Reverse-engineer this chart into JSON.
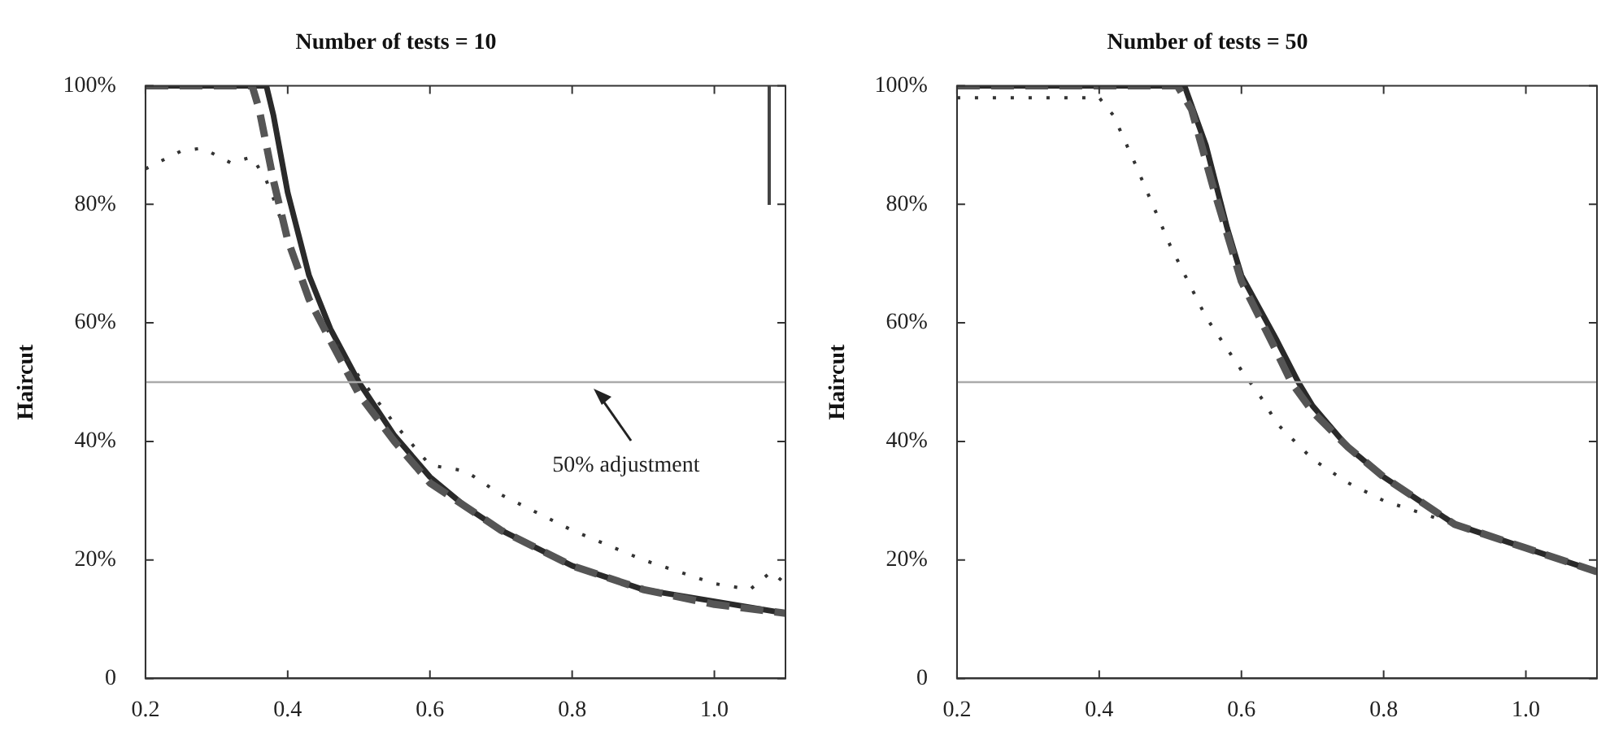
{
  "chart_data": [
    {
      "type": "line",
      "title": "Number of tests = 10",
      "ylabel": "Haircut",
      "xlim": [
        0.2,
        1.1
      ],
      "xticks": [
        0.2,
        0.4,
        0.6,
        0.8,
        {
          "value": 1,
          "label": "1.0"
        }
      ],
      "ylim": [
        0,
        100
      ],
      "yticks": [
        0,
        {
          "value": 20,
          "label": "20%"
        },
        {
          "value": 40,
          "label": "40%"
        },
        {
          "value": 60,
          "label": "60%"
        },
        {
          "value": 80,
          "label": "80%"
        },
        {
          "value": 100,
          "label": "100%"
        }
      ],
      "legend": false,
      "marker": "none",
      "series": [
        {
          "color": "#555555",
          "line_style": "dashed",
          "x": [
            0.2,
            0.3,
            0.35,
            0.36,
            0.38,
            0.4,
            0.43,
            0.46,
            0.5,
            0.55,
            0.6,
            0.65,
            0.7,
            0.8,
            0.9,
            1.0,
            1.1
          ],
          "values": [
            100,
            100,
            100,
            96,
            84,
            74,
            64,
            57,
            48,
            40,
            33,
            29,
            25,
            19,
            15,
            12.5,
            11
          ]
        },
        {
          "color": "#333333",
          "line_style": "dotted",
          "x": [
            0.2,
            0.25,
            0.28,
            0.32,
            0.35,
            0.37,
            0.38,
            0.4,
            0.43,
            0.46,
            0.5,
            0.55,
            0.6,
            0.65,
            0.7,
            0.8,
            0.9,
            1.0,
            1.05,
            1.08,
            1.1
          ],
          "values": [
            86,
            89,
            89.5,
            87,
            88,
            84,
            81,
            74,
            64,
            58,
            51,
            43,
            36,
            35,
            31,
            25,
            20,
            16,
            15,
            18,
            16
          ]
        },
        {
          "color": "#2a2a2a",
          "line_style": "solid",
          "x": [
            0.2,
            0.3,
            0.37,
            0.38,
            0.4,
            0.43,
            0.46,
            0.5,
            0.55,
            0.6,
            0.65,
            0.7,
            0.8,
            0.9,
            1.0,
            1.1
          ],
          "values": [
            100,
            100,
            100,
            95,
            82,
            68,
            59,
            50,
            41,
            34,
            29,
            25,
            19,
            15,
            13,
            11
          ]
        }
      ],
      "ref_lines": [
        {
          "axis": "y",
          "value": 50,
          "color": "#aaaaaa"
        }
      ],
      "annotations": [
        {
          "text": "50% adjustment",
          "x": 0.83,
          "y": 50
        }
      ]
    },
    {
      "type": "line",
      "title": "Number of tests = 50",
      "ylabel": "Haircut",
      "xlim": [
        0.2,
        1.1
      ],
      "xticks": [
        0.2,
        0.4,
        0.6,
        0.8,
        {
          "value": 1,
          "label": "1.0"
        }
      ],
      "ylim": [
        0,
        100
      ],
      "yticks": [
        0,
        {
          "value": 20,
          "label": "20%"
        },
        {
          "value": 40,
          "label": "40%"
        },
        {
          "value": 60,
          "label": "60%"
        },
        {
          "value": 80,
          "label": "80%"
        },
        {
          "value": 100,
          "label": "100%"
        }
      ],
      "legend": false,
      "marker": "none",
      "series": [
        {
          "color": "#555555",
          "line_style": "dashed",
          "x": [
            0.2,
            0.4,
            0.51,
            0.53,
            0.56,
            0.6,
            0.65,
            0.67,
            0.7,
            0.75,
            0.8,
            0.9,
            1.0,
            1.1
          ],
          "values": [
            100,
            100,
            100,
            96,
            83,
            67,
            55,
            50,
            45,
            39,
            34,
            26,
            22,
            18
          ]
        },
        {
          "color": "#333333",
          "line_style": "dotted",
          "x": [
            0.2,
            0.3,
            0.4,
            0.42,
            0.45,
            0.5,
            0.55,
            0.6,
            0.63,
            0.65,
            0.7,
            0.75,
            0.8,
            0.9,
            1.0,
            1.1
          ],
          "values": [
            98,
            98,
            98,
            95,
            87,
            73,
            61,
            52,
            47,
            43,
            37,
            33,
            30,
            26,
            22,
            18
          ]
        },
        {
          "color": "#2a2a2a",
          "line_style": "solid",
          "x": [
            0.2,
            0.4,
            0.52,
            0.55,
            0.58,
            0.6,
            0.65,
            0.68,
            0.7,
            0.75,
            0.8,
            0.85,
            0.9,
            1.0,
            1.1
          ],
          "values": [
            100,
            100,
            100,
            90,
            76,
            68,
            57,
            50,
            46,
            39,
            34,
            30,
            26,
            22,
            18
          ]
        }
      ],
      "ref_lines": [
        {
          "axis": "y",
          "value": 50,
          "color": "#aaaaaa"
        }
      ]
    }
  ]
}
